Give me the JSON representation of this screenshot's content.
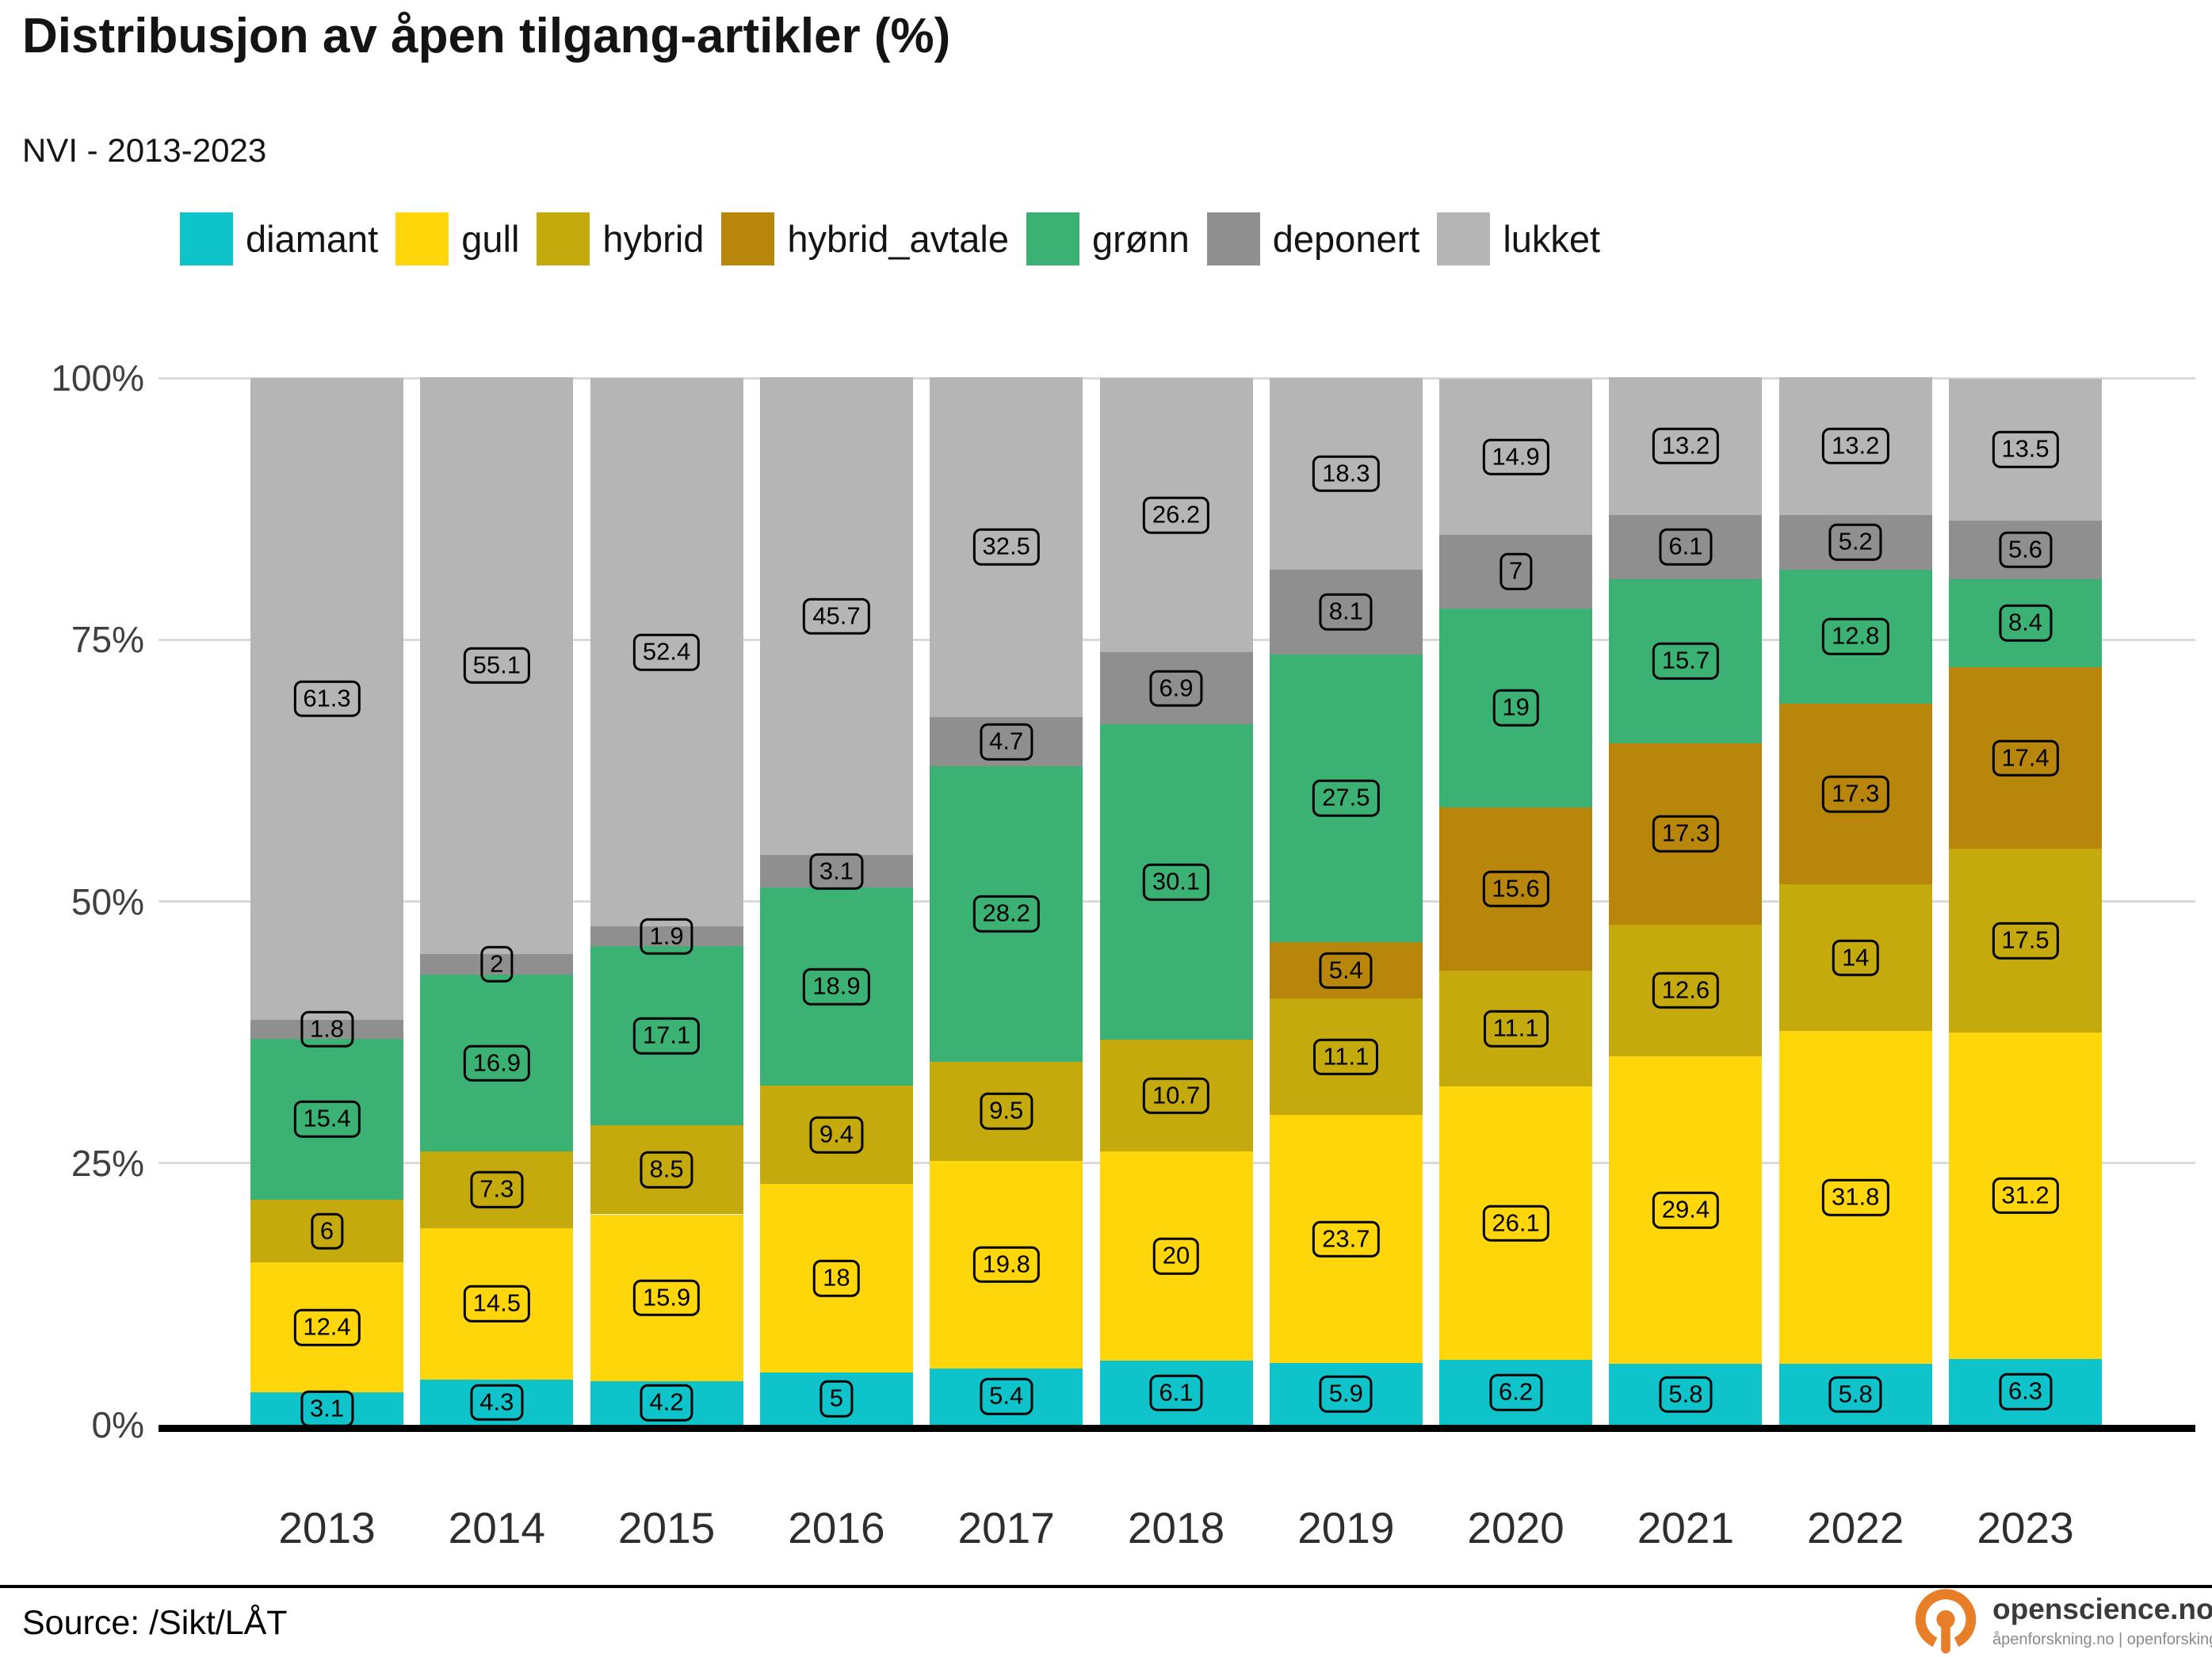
{
  "title": "Distribusjon av åpen tilgang-artikler (%)",
  "subtitle": "NVI - 2013-2023",
  "y_axis": {
    "ticks": [
      {
        "value": 0,
        "label": "0%"
      },
      {
        "value": 25,
        "label": "25%"
      },
      {
        "value": 50,
        "label": "50%"
      },
      {
        "value": 75,
        "label": "75%"
      },
      {
        "value": 100,
        "label": "100%"
      }
    ]
  },
  "chart_data": {
    "type": "bar",
    "stacked": true,
    "unit": "percent",
    "title": "Distribusjon av åpen tilgang-artikler (%)",
    "xlabel": "",
    "ylabel": "",
    "ylim": [
      0,
      100
    ],
    "gridlines": [
      0,
      25,
      50,
      75,
      100
    ],
    "legend_position": "top",
    "categories": [
      "2013",
      "2014",
      "2015",
      "2016",
      "2017",
      "2018",
      "2019",
      "2020",
      "2021",
      "2022",
      "2023"
    ],
    "series": [
      {
        "name": "diamant",
        "color": "#0EC3CA",
        "values": [
          3.1,
          4.3,
          4.2,
          5,
          5.4,
          6.1,
          5.9,
          6.2,
          5.8,
          5.8,
          6.3
        ]
      },
      {
        "name": "gull",
        "color": "#FFD60A",
        "values": [
          12.4,
          14.5,
          15.9,
          18,
          19.8,
          20,
          23.7,
          26.1,
          29.4,
          31.8,
          31.2
        ]
      },
      {
        "name": "hybrid",
        "color": "#C5AA0D",
        "values": [
          6,
          7.3,
          8.5,
          9.4,
          9.5,
          10.7,
          11.1,
          11.1,
          12.6,
          14,
          17.5
        ]
      },
      {
        "name": "hybrid_avtale",
        "color": "#B8860B",
        "values": [
          0,
          0,
          0,
          0,
          0,
          0,
          5.4,
          15.6,
          17.3,
          17.3,
          17.4
        ]
      },
      {
        "name": "grønn",
        "color": "#3BB273",
        "values": [
          15.4,
          16.9,
          17.1,
          18.9,
          28.2,
          30.1,
          27.5,
          19,
          15.7,
          12.8,
          8.4
        ]
      },
      {
        "name": "deponert",
        "color": "#8F8F8F",
        "values": [
          1.8,
          2,
          1.9,
          3.1,
          4.7,
          6.9,
          8.1,
          7,
          6.1,
          5.2,
          5.6
        ]
      },
      {
        "name": "lukket",
        "color": "#B5B5B5",
        "values": [
          61.3,
          55.1,
          52.4,
          45.7,
          32.5,
          26.2,
          18.3,
          14.9,
          13.2,
          13.2,
          13.5
        ]
      }
    ]
  },
  "footer": {
    "source": "Source: /Sikt/LÅT",
    "brand": "openscience.no",
    "brand_sub": "åpenforskning.no | openforsking.no",
    "brand_color": "#E87E28"
  }
}
